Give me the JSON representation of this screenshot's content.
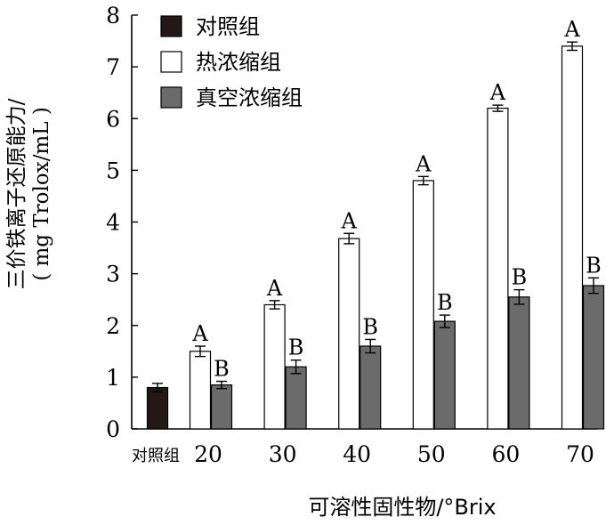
{
  "chart_data": {
    "type": "bar",
    "xlabel": "可溶性固性物/°Brix",
    "ylabel_line1": "三价铁离子还原能力/",
    "ylabel_line2": "( mg Trolox/mL )",
    "ylim": [
      0,
      8
    ],
    "yticks": [
      0,
      1,
      2,
      3,
      4,
      5,
      6,
      7,
      8
    ],
    "legend_position": "top-left",
    "control": {
      "name": "对照组",
      "label": "对照组",
      "value": 0.8,
      "error": 0.08,
      "color": "#231816"
    },
    "categories": [
      "20",
      "30",
      "40",
      "50",
      "60",
      "70"
    ],
    "series": [
      {
        "name": "热浓缩组",
        "color": "#ffffff",
        "values": [
          1.5,
          2.4,
          3.68,
          4.8,
          6.2,
          7.4
        ],
        "errors": [
          0.1,
          0.08,
          0.1,
          0.08,
          0.06,
          0.08
        ],
        "labels": [
          "A",
          "A",
          "A",
          "A",
          "A",
          "A"
        ]
      },
      {
        "name": "真空浓缩组",
        "color": "#6b6b6b",
        "values": [
          0.85,
          1.2,
          1.6,
          2.08,
          2.55,
          2.77
        ],
        "errors": [
          0.07,
          0.13,
          0.13,
          0.12,
          0.14,
          0.15
        ],
        "labels": [
          "B",
          "B",
          "B",
          "B",
          "B",
          "B"
        ]
      }
    ]
  }
}
